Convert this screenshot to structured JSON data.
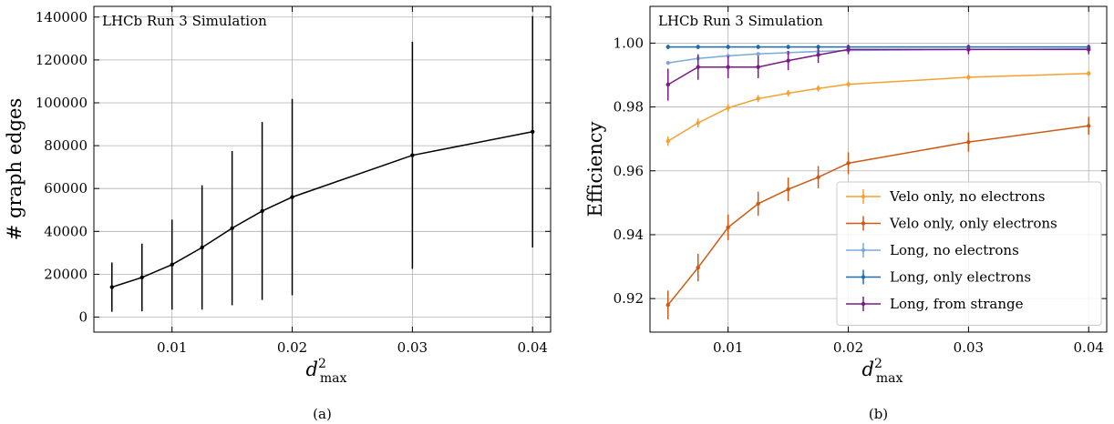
{
  "chart_data": [
    {
      "type": "line",
      "panel_label": "(a)",
      "annotation": "LHCb Run 3 Simulation",
      "ylabel": "# graph edges",
      "xlabel_base": "d",
      "xlabel_sup": "2",
      "xlabel_sub": "max",
      "xlim": [
        0.0035,
        0.0415
      ],
      "ylim": [
        -7000,
        145000
      ],
      "xticks": [
        0.01,
        0.02,
        0.03,
        0.04
      ],
      "xtick_labels": [
        "0.01",
        "0.02",
        "0.03",
        "0.04"
      ],
      "yticks": [
        0,
        20000,
        40000,
        60000,
        80000,
        100000,
        120000,
        140000
      ],
      "ytick_labels": [
        "0",
        "20000",
        "40000",
        "60000",
        "80000",
        "100000",
        "120000",
        "140000"
      ],
      "grid": true,
      "series": [
        {
          "color": "#000000",
          "x": [
            0.005,
            0.0075,
            0.01,
            0.0125,
            0.015,
            0.0175,
            0.02,
            0.03,
            0.04
          ],
          "y": [
            14000,
            18500,
            24500,
            32500,
            41500,
            49500,
            56000,
            75500,
            86500
          ],
          "err": [
            11500,
            15800,
            21000,
            29000,
            36000,
            41500,
            45800,
            53000,
            54000
          ]
        }
      ]
    },
    {
      "type": "line",
      "panel_label": "(b)",
      "annotation": "LHCb Run 3 Simulation",
      "ylabel": "Efficiency",
      "xlabel_base": "d",
      "xlabel_sup": "2",
      "xlabel_sub": "max",
      "xlim": [
        0.0035,
        0.0415
      ],
      "ylim": [
        0.9095,
        1.0115
      ],
      "xticks": [
        0.01,
        0.02,
        0.03,
        0.04
      ],
      "xtick_labels": [
        "0.01",
        "0.02",
        "0.03",
        "0.04"
      ],
      "yticks": [
        0.92,
        0.94,
        0.96,
        0.98,
        1.0
      ],
      "ytick_labels": [
        "0.92",
        "0.94",
        "0.96",
        "0.98",
        "1.00"
      ],
      "grid": true,
      "legend_position": "lower-right",
      "series": [
        {
          "name": "Velo only, no electrons",
          "color": "#f5a031",
          "x": [
            0.005,
            0.0075,
            0.01,
            0.0125,
            0.015,
            0.0175,
            0.02,
            0.03,
            0.04
          ],
          "y": [
            0.9693,
            0.975,
            0.9797,
            0.9826,
            0.9843,
            0.9858,
            0.9871,
            0.9893,
            0.9905
          ],
          "err": [
            0.0015,
            0.0014,
            0.0012,
            0.0011,
            0.001,
            0.001,
            0.0009,
            0.0008,
            0.0008
          ]
        },
        {
          "name": "Velo only, only electrons",
          "color": "#cc5a14",
          "x": [
            0.005,
            0.0075,
            0.01,
            0.0125,
            0.015,
            0.0175,
            0.02,
            0.03,
            0.04
          ],
          "y": [
            0.918,
            0.9297,
            0.9423,
            0.9497,
            0.9542,
            0.958,
            0.9624,
            0.969,
            0.9741
          ],
          "err": [
            0.0045,
            0.0043,
            0.004,
            0.0038,
            0.0037,
            0.0035,
            0.0034,
            0.003,
            0.0028
          ]
        },
        {
          "name": "Long, no electrons",
          "color": "#7aaad8",
          "x": [
            0.005,
            0.0075,
            0.01,
            0.0125,
            0.015,
            0.0175,
            0.02,
            0.03,
            0.04
          ],
          "y": [
            0.9938,
            0.9952,
            0.996,
            0.9966,
            0.997,
            0.9974,
            0.9977,
            0.998,
            0.9982
          ],
          "err": [
            0.0004,
            0.0004,
            0.0003,
            0.0003,
            0.0003,
            0.0003,
            0.0002,
            0.0002,
            0.0002
          ]
        },
        {
          "name": "Long, only electrons",
          "color": "#1f6eb0",
          "x": [
            0.005,
            0.0075,
            0.01,
            0.0125,
            0.015,
            0.0175,
            0.02,
            0.03,
            0.04
          ],
          "y": [
            0.9988,
            0.9988,
            0.9988,
            0.9988,
            0.9988,
            0.9988,
            0.9988,
            0.9988,
            0.9988
          ],
          "err": [
            0.0007,
            0.0007,
            0.0007,
            0.0007,
            0.0007,
            0.0007,
            0.0007,
            0.0007,
            0.0007
          ]
        },
        {
          "name": "Long, from strange",
          "color": "#7a1a86",
          "x": [
            0.005,
            0.0075,
            0.01,
            0.0125,
            0.015,
            0.0175,
            0.02,
            0.03,
            0.04
          ],
          "y": [
            0.987,
            0.9925,
            0.9925,
            0.9925,
            0.9945,
            0.9963,
            0.998,
            0.998,
            0.998
          ],
          "err": [
            0.005,
            0.004,
            0.0035,
            0.0035,
            0.003,
            0.0025,
            0.0015,
            0.0015,
            0.0015
          ]
        }
      ]
    }
  ]
}
